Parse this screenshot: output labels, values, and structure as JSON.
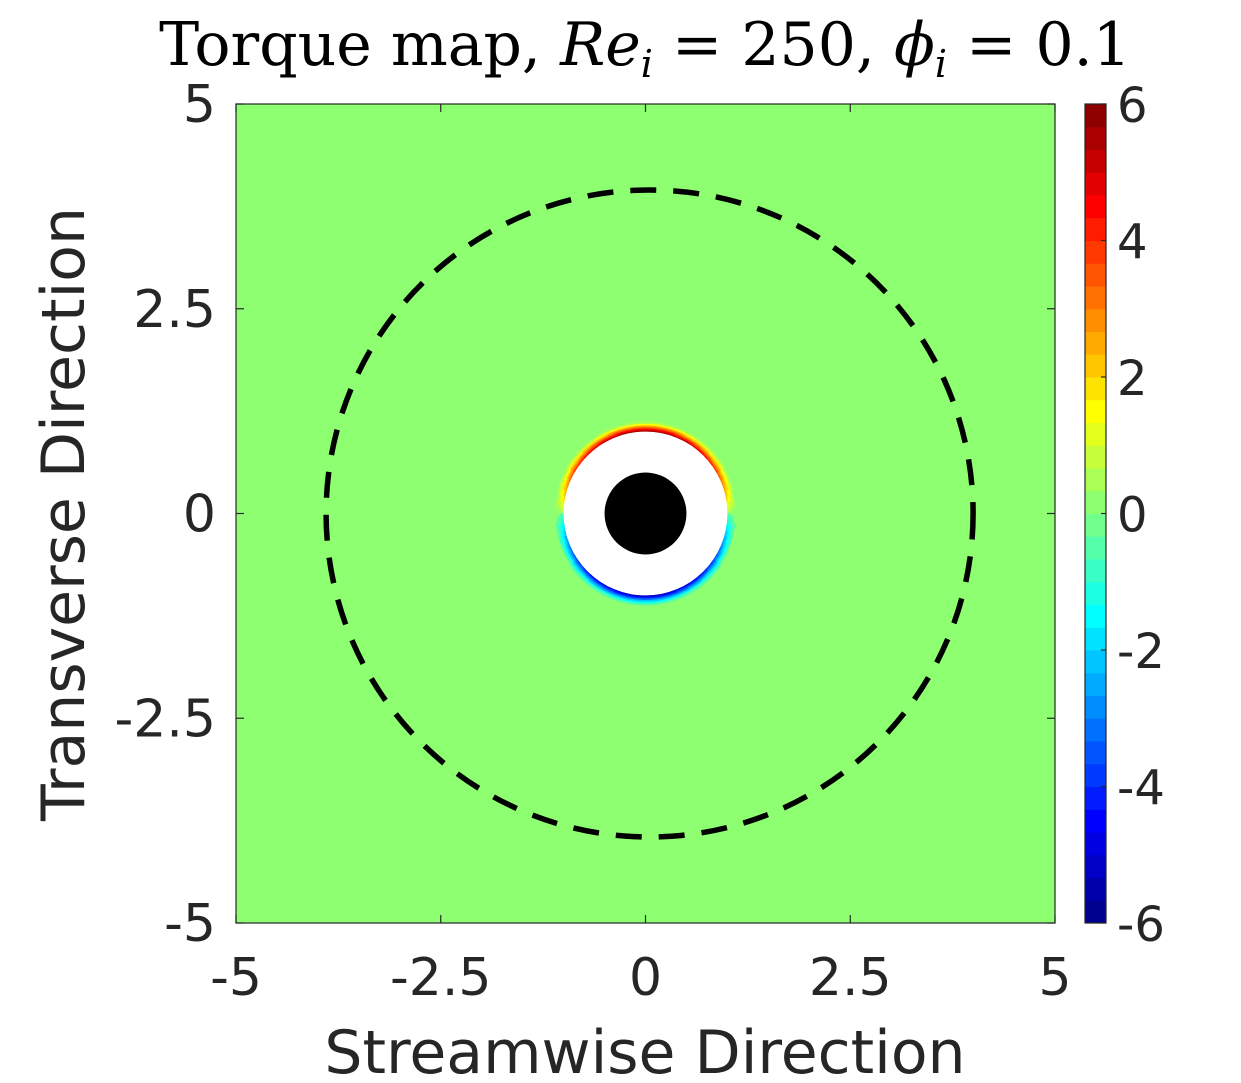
{
  "chart_data": {
    "type": "heatmap",
    "title": {
      "prefix": "Torque map, ",
      "re_symbol": "Re",
      "re_sub": "i",
      "re_value": " = 250, ",
      "phi_symbol": "ϕ",
      "phi_sub": "i",
      "phi_value": " = 0.1"
    },
    "xlabel": "Streamwise Direction",
    "ylabel": "Transverse Direction",
    "xlim": [
      -5,
      5
    ],
    "ylim": [
      -5,
      5
    ],
    "xticks": [
      {
        "value": -5,
        "label": "-5"
      },
      {
        "value": -2.5,
        "label": "-2.5"
      },
      {
        "value": 0,
        "label": "0"
      },
      {
        "value": 2.5,
        "label": "2.5"
      },
      {
        "value": 5,
        "label": "5"
      }
    ],
    "yticks": [
      {
        "value": -5,
        "label": "-5"
      },
      {
        "value": -2.5,
        "label": "-2.5"
      },
      {
        "value": 0,
        "label": "0"
      },
      {
        "value": 2.5,
        "label": "2.5"
      },
      {
        "value": 5,
        "label": "5"
      }
    ],
    "colorbar": {
      "range": [
        -6,
        6
      ],
      "levels": 36,
      "colormap": "jet",
      "ticks": [
        {
          "value": 6,
          "label": "6"
        },
        {
          "value": 4,
          "label": "4"
        },
        {
          "value": 2,
          "label": "2"
        },
        {
          "value": 0,
          "label": "0"
        },
        {
          "value": -2,
          "label": "-2"
        },
        {
          "value": -4,
          "label": "-4"
        },
        {
          "value": -6,
          "label": "-6"
        }
      ]
    },
    "background_value": 0.0,
    "particle": {
      "center": [
        0,
        0
      ],
      "radius": 0.5,
      "color": "#000000"
    },
    "excluded_region": {
      "center": [
        0,
        0
      ],
      "radius": 1.0,
      "color": "#ffffff"
    },
    "torque_shell": {
      "inner_radius": 1.0,
      "outer_radius": 1.12,
      "upper_peak": 6.0,
      "lower_peak": -5.6
    },
    "dashed_circle": {
      "center": [
        0.05,
        0
      ],
      "radius": 3.95,
      "color": "#000000",
      "style": "dashed"
    }
  }
}
